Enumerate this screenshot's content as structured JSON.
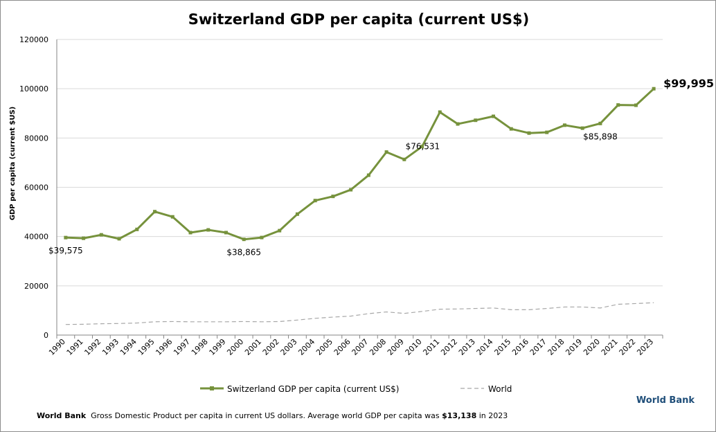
{
  "chart_data": {
    "type": "line",
    "title": "Switzerland GDP per capita (current US$)",
    "xlabel": "",
    "ylabel": "GDP per capita (current $US)",
    "ylim": [
      0,
      120000
    ],
    "yticks": [
      "0",
      "20000",
      "40000",
      "60000",
      "80000",
      "100000",
      "120000"
    ],
    "grid": true,
    "legend_position": "bottom",
    "categories": [
      "1990",
      "1991",
      "1992",
      "1993",
      "1994",
      "1995",
      "1996",
      "1997",
      "1998",
      "1999",
      "2000",
      "2001",
      "2002",
      "2003",
      "2004",
      "2005",
      "2006",
      "2007",
      "2008",
      "2009",
      "2010",
      "2011",
      "2012",
      "2013",
      "2014",
      "2015",
      "2016",
      "2017",
      "2018",
      "2019",
      "2020",
      "2021",
      "2022",
      "2023"
    ],
    "series": [
      {
        "name": "Switzerland GDP per capita (current US$)",
        "color": "#76923c",
        "style": "solid-with-markers",
        "values": [
          39575,
          39300,
          40700,
          39100,
          42900,
          50100,
          48000,
          41600,
          42700,
          41600,
          38865,
          39600,
          42400,
          49100,
          54600,
          56300,
          59000,
          64900,
          74300,
          71300,
          76531,
          90500,
          85700,
          87200,
          88800,
          83700,
          82000,
          82300,
          85200,
          84000,
          85898,
          93400,
          93300,
          99995
        ]
      },
      {
        "name": "World",
        "color": "#a6a6a6",
        "style": "dashed",
        "values": [
          4300,
          4400,
          4600,
          4700,
          4900,
          5400,
          5500,
          5400,
          5400,
          5400,
          5500,
          5400,
          5500,
          6100,
          6800,
          7300,
          7700,
          8700,
          9400,
          8800,
          9600,
          10500,
          10600,
          10800,
          11000,
          10300,
          10300,
          10800,
          11400,
          11400,
          11000,
          12500,
          12800,
          13138
        ]
      }
    ],
    "annotations": [
      {
        "category": "1990",
        "text": "$39,575"
      },
      {
        "category": "2000",
        "text": "$38,865"
      },
      {
        "category": "2010",
        "text": "$76,531"
      },
      {
        "category": "2020",
        "text": "$85,898"
      },
      {
        "category": "2023",
        "text": "$99,995"
      }
    ]
  },
  "brand": "World Bank",
  "footnote": {
    "source": "World Bank",
    "text_before": "Gross Domestic Product per capita in current US dollars.  Average world GDP per capita was",
    "highlight": "$13,138",
    "text_after": "in 2023"
  }
}
